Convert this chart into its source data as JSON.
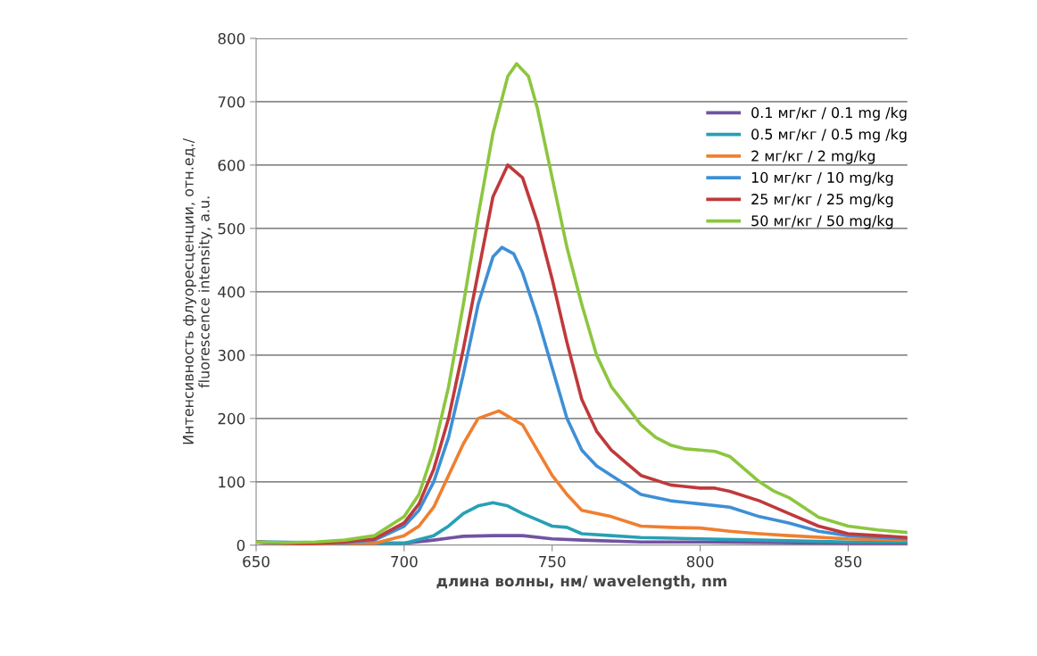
{
  "chart_data": {
    "type": "line",
    "xlabel": "длина волны, нм/ wavelength, nm",
    "ylabel": "Интенсивность флуоресценции, отн.ед./\nfluorescence intensity, a.u.",
    "xlim": [
      650,
      870
    ],
    "xticks": [
      650,
      700,
      750,
      800,
      850
    ],
    "ylim": [
      0,
      800
    ],
    "yticks": [
      0,
      100,
      200,
      300,
      400,
      500,
      600,
      700,
      800
    ],
    "grid": "y",
    "legend": "top right",
    "series": [
      {
        "name": "0.1 мг/кг / 0.1 mg /kg",
        "color": "#7153a2",
        "x": [
          650,
          665,
          680,
          700,
          710,
          720,
          730,
          740,
          750,
          760,
          780,
          800,
          850,
          870
        ],
        "values": [
          5,
          2,
          3,
          3,
          8,
          14,
          15,
          15,
          10,
          8,
          5,
          5,
          3,
          3
        ]
      },
      {
        "name": "0.5 мг/кг / 0.5 mg /kg",
        "color": "#27a0b5",
        "x": [
          650,
          680,
          700,
          710,
          715,
          720,
          725,
          730,
          735,
          740,
          745,
          750,
          755,
          760,
          770,
          780,
          800,
          820,
          850,
          870
        ],
        "values": [
          5,
          3,
          3,
          15,
          30,
          50,
          62,
          67,
          62,
          50,
          40,
          30,
          28,
          18,
          15,
          12,
          10,
          8,
          5,
          5
        ]
      },
      {
        "name": "2 мг/кг / 2 mg/kg",
        "color": "#f07f2f",
        "x": [
          650,
          665,
          680,
          690,
          700,
          705,
          710,
          715,
          720,
          725,
          732,
          740,
          745,
          750,
          755,
          760,
          770,
          780,
          790,
          800,
          810,
          820,
          830,
          850,
          870
        ],
        "values": [
          5,
          2,
          3,
          3,
          15,
          30,
          60,
          110,
          160,
          200,
          212,
          190,
          150,
          110,
          80,
          55,
          45,
          30,
          28,
          27,
          22,
          18,
          15,
          10,
          8
        ]
      },
      {
        "name": "10 мг/кг / 10 mg/kg",
        "color": "#3e8fd6",
        "x": [
          650,
          680,
          690,
          700,
          705,
          710,
          715,
          720,
          725,
          730,
          733,
          737,
          740,
          745,
          750,
          755,
          760,
          765,
          770,
          780,
          790,
          800,
          810,
          820,
          830,
          840,
          850,
          870
        ],
        "values": [
          5,
          4,
          8,
          30,
          55,
          100,
          170,
          270,
          380,
          455,
          470,
          460,
          430,
          360,
          280,
          200,
          150,
          125,
          110,
          80,
          70,
          65,
          60,
          45,
          35,
          22,
          15,
          10
        ]
      },
      {
        "name": "25 мг/кг / 25 mg/kg",
        "color": "#c0393b",
        "x": [
          650,
          665,
          680,
          690,
          700,
          705,
          710,
          715,
          720,
          725,
          730,
          735,
          740,
          745,
          750,
          755,
          760,
          765,
          770,
          775,
          780,
          790,
          800,
          805,
          810,
          820,
          830,
          840,
          850,
          860,
          870
        ],
        "values": [
          5,
          2,
          5,
          10,
          35,
          65,
          120,
          200,
          310,
          430,
          550,
          600,
          580,
          510,
          420,
          320,
          230,
          180,
          150,
          130,
          110,
          95,
          90,
          90,
          85,
          70,
          50,
          30,
          18,
          15,
          12
        ]
      },
      {
        "name": "50 мг/кг / 50 mg/kg",
        "color": "#8cc63f",
        "x": [
          650,
          660,
          670,
          680,
          690,
          700,
          705,
          710,
          715,
          720,
          725,
          730,
          735,
          738,
          742,
          745,
          750,
          755,
          760,
          765,
          770,
          775,
          780,
          785,
          790,
          795,
          800,
          805,
          810,
          815,
          820,
          825,
          830,
          840,
          850,
          860,
          870
        ],
        "values": [
          5,
          4,
          5,
          8,
          15,
          45,
          80,
          150,
          250,
          380,
          520,
          650,
          740,
          760,
          740,
          690,
          580,
          470,
          380,
          300,
          250,
          220,
          190,
          170,
          158,
          152,
          150,
          148,
          140,
          120,
          100,
          85,
          75,
          44,
          30,
          24,
          20
        ]
      }
    ]
  }
}
